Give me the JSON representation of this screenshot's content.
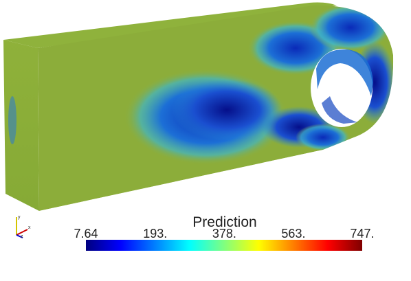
{
  "colorbar": {
    "title": "Prediction",
    "range": [
      7.64,
      747
    ],
    "ticks": [
      {
        "value": 7.64,
        "label": "7.64"
      },
      {
        "value": 193,
        "label": "193."
      },
      {
        "value": 378,
        "label": "378."
      },
      {
        "value": 563,
        "label": "563."
      },
      {
        "value": 747,
        "label": "747."
      }
    ]
  },
  "axes": {
    "x": "x",
    "y": "y",
    "z": "z"
  }
}
